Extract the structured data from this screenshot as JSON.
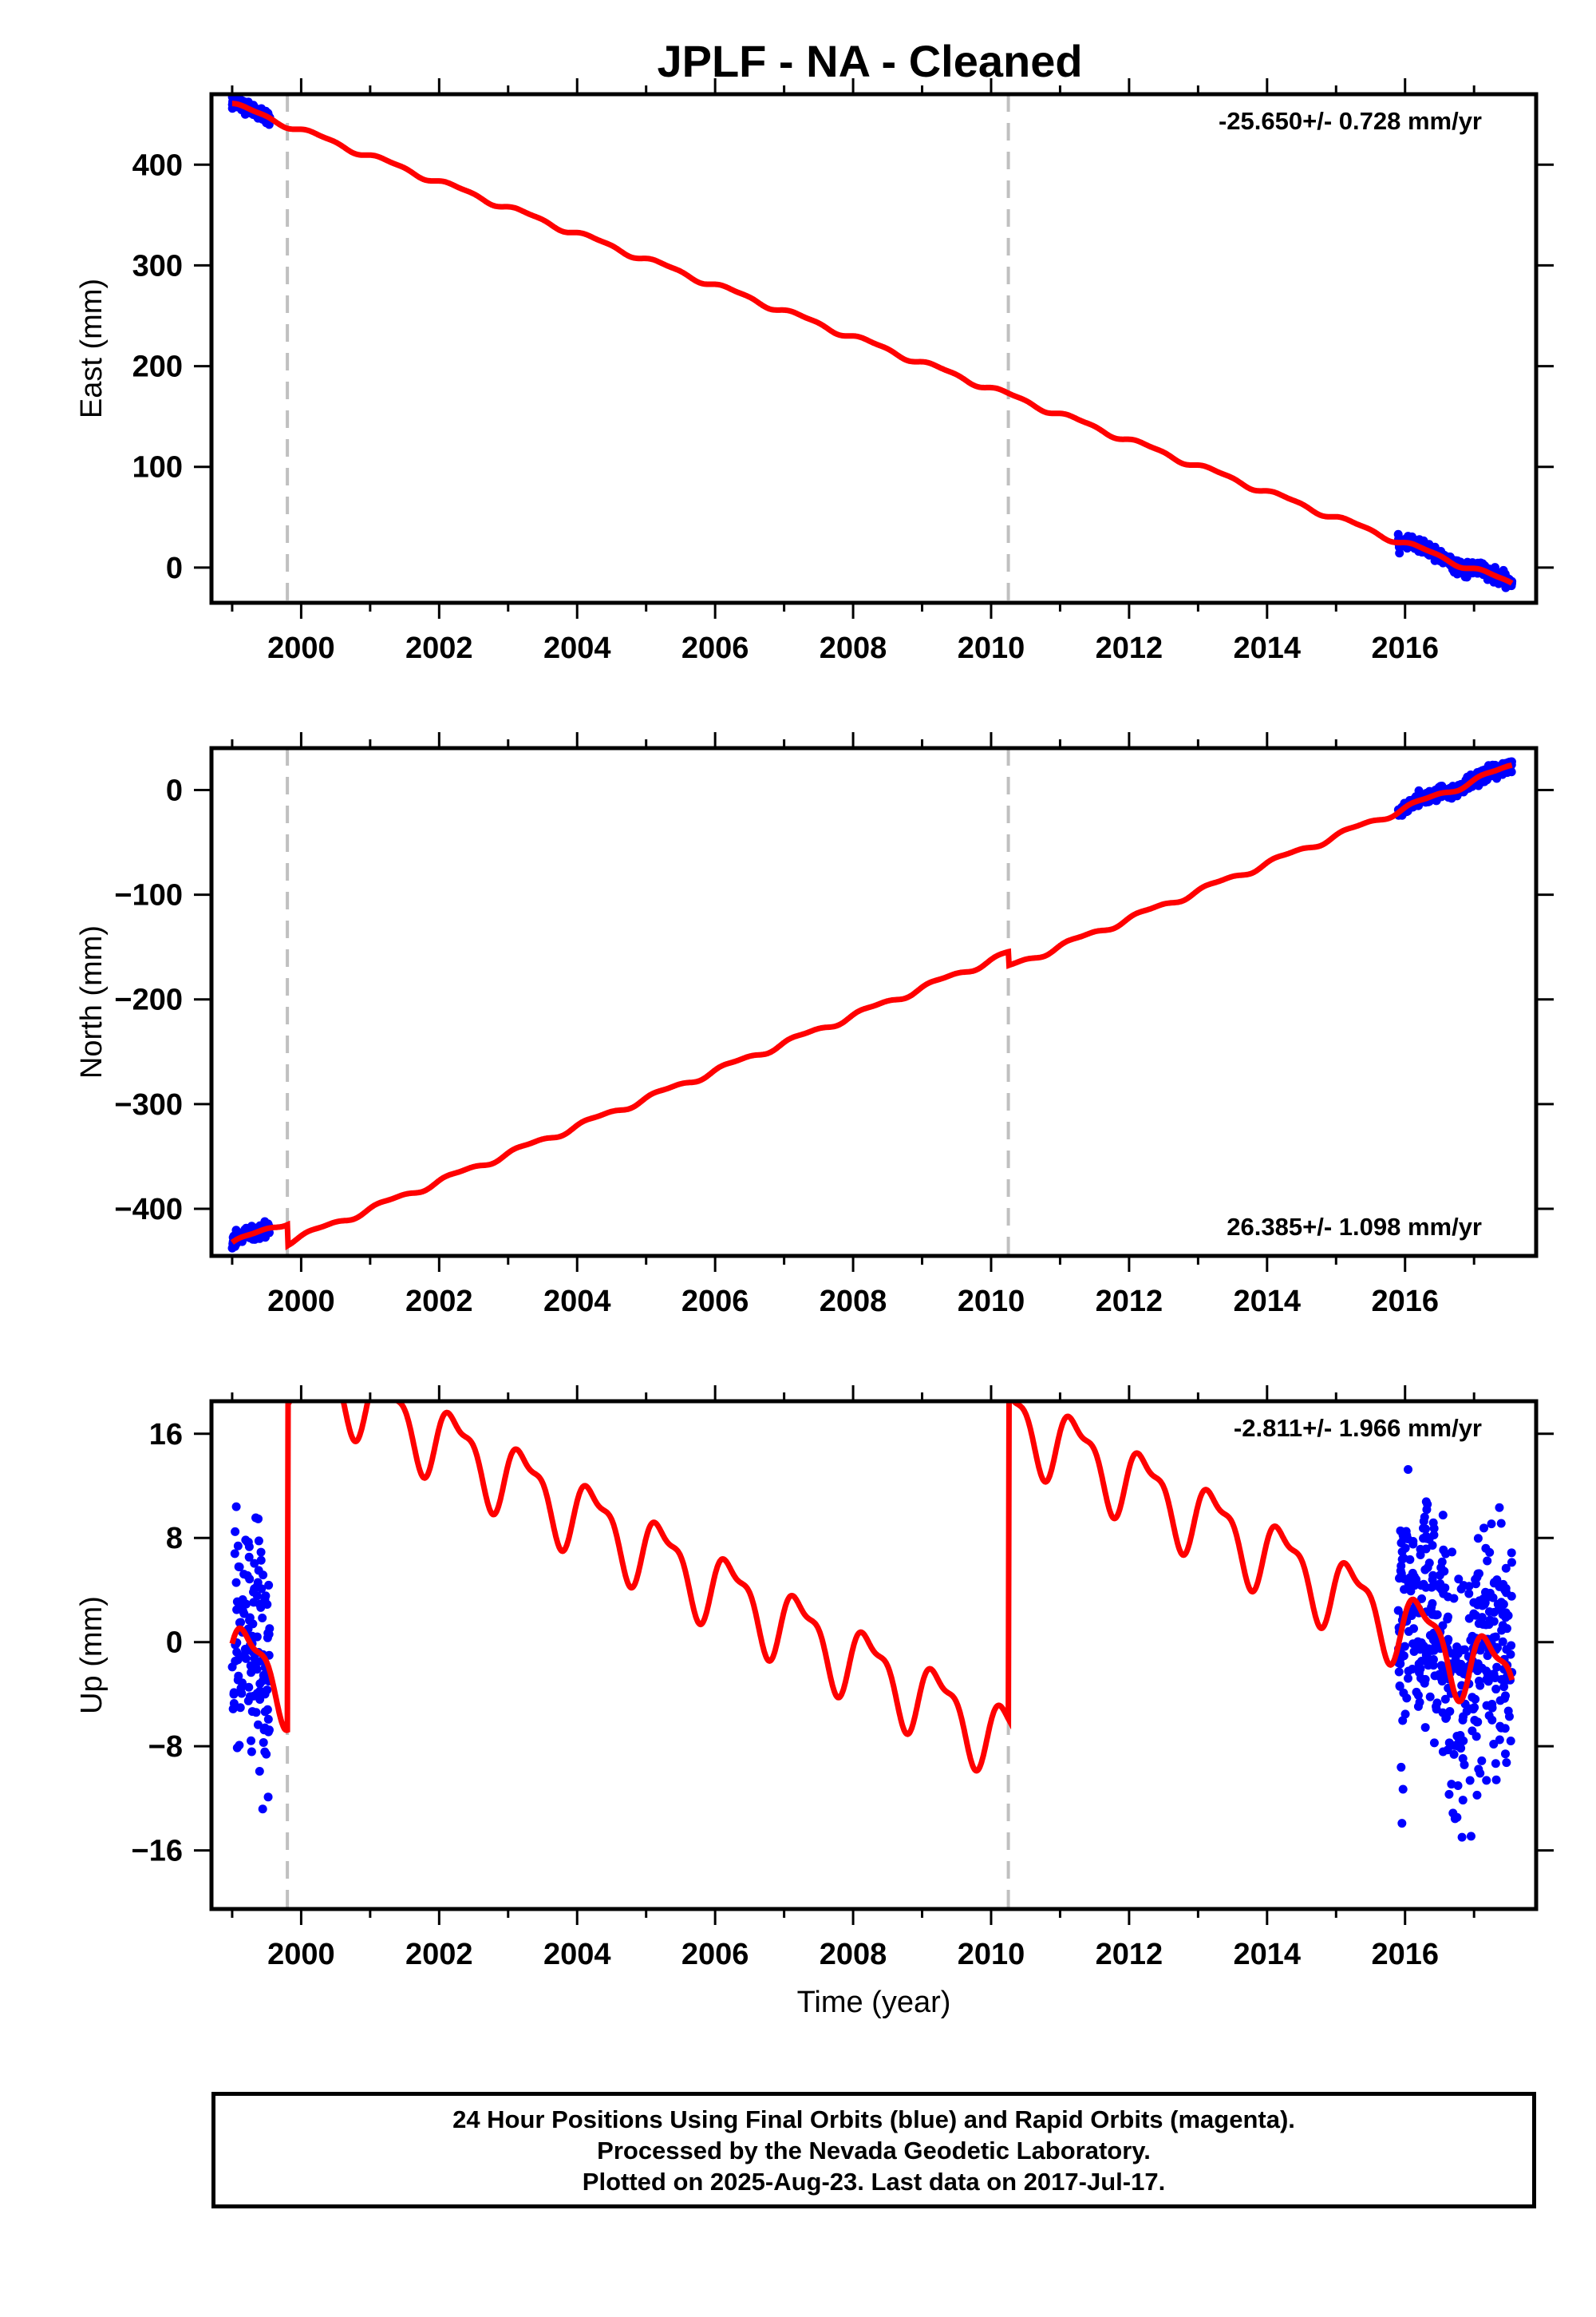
{
  "title": "JPLF  - NA - Cleaned",
  "colors": {
    "data": "#0000ff",
    "model": "#ff0000",
    "offset_line": "#c0c0c0",
    "axis": "#000000"
  },
  "chart_data": [
    {
      "type": "scatter",
      "panel": "East",
      "ylabel": "East (mm)",
      "xlabel": "",
      "rate_label": "-25.650+/- 0.728 mm/yr",
      "rate_label_position": "top-right",
      "xlim": [
        1998.7,
        2017.9
      ],
      "ylim": [
        -35,
        470
      ],
      "x_ticks": [
        2000,
        2002,
        2004,
        2006,
        2008,
        2010,
        2012,
        2014,
        2016
      ],
      "y_ticks": [
        0,
        100,
        200,
        300,
        400
      ],
      "offset_epochs": [
        1999.8,
        2010.25
      ],
      "model": {
        "name": "",
        "rate": -25.65,
        "value_at_start": 460,
        "start": 1999.0,
        "end": 2017.55,
        "annual_amplitude": 2.5,
        "steps": []
      },
      "observations": [
        {
          "segment": [
            1999.0,
            1999.55
          ],
          "center_offset": 0,
          "scatter": 3
        },
        {
          "segment": [
            2015.9,
            2017.55
          ],
          "center_offset": 0,
          "scatter": 3
        }
      ]
    },
    {
      "type": "scatter",
      "panel": "North",
      "ylabel": "North (mm)",
      "xlabel": "",
      "rate_label": "26.385+/- 1.098 mm/yr",
      "rate_label_position": "bottom-right",
      "xlim": [
        1998.7,
        2017.9
      ],
      "ylim": [
        -445,
        40
      ],
      "x_ticks": [
        2000,
        2002,
        2004,
        2006,
        2008,
        2010,
        2012,
        2014,
        2016
      ],
      "y_ticks": [
        -400,
        -300,
        -200,
        -100,
        0
      ],
      "offset_epochs": [
        1999.8,
        2010.25
      ],
      "model": {
        "name": "",
        "rate": 26.385,
        "value_at_start": -433,
        "start": 1999.0,
        "end": 2017.55,
        "annual_amplitude": 2.5,
        "steps": [
          {
            "epoch": 1999.8,
            "size": -20
          },
          {
            "epoch": 2010.25,
            "size": -13
          }
        ]
      },
      "observations": [
        {
          "segment": [
            1999.0,
            1999.55
          ],
          "center_offset": 0,
          "scatter": 3
        },
        {
          "segment": [
            2015.9,
            2017.55
          ],
          "center_offset": 0,
          "scatter": 3
        }
      ]
    },
    {
      "type": "scatter",
      "panel": "Up",
      "ylabel": "Up (mm)",
      "xlabel": "Time (year)",
      "rate_label": "-2.811+/- 1.966 mm/yr",
      "rate_label_position": "top-right",
      "xlim": [
        1998.7,
        2017.9
      ],
      "ylim": [
        -20.5,
        18.5
      ],
      "x_ticks": [
        2000,
        2002,
        2004,
        2006,
        2008,
        2010,
        2012,
        2014,
        2016
      ],
      "y_ticks": [
        -16,
        -8,
        0,
        8,
        16
      ],
      "offset_epochs": [
        1999.8,
        2010.25
      ],
      "model": {
        "name": "",
        "rate": -2.811,
        "value_at_start": -1.0,
        "start": 1999.0,
        "end": 2017.55,
        "annual_amplitude": 2.6,
        "steps": [
          {
            "epoch": 1999.8,
            "size": 25
          },
          {
            "epoch": 2010.25,
            "size": 25
          }
        ]
      },
      "observations": [
        {
          "segment": [
            1999.0,
            1999.55
          ],
          "center_offset": 0,
          "scatter": 4.5
        },
        {
          "segment": [
            2015.9,
            2017.55
          ],
          "center_offset": 0,
          "scatter": 4.5
        }
      ]
    }
  ],
  "footer": {
    "line1": "24 Hour Positions Using Final Orbits (blue) and Rapid Orbits (magenta).",
    "line2": "Processed by the Nevada Geodetic Laboratory.",
    "line3": "Plotted on 2025-Aug-23. Last data on 2017-Jul-17."
  }
}
